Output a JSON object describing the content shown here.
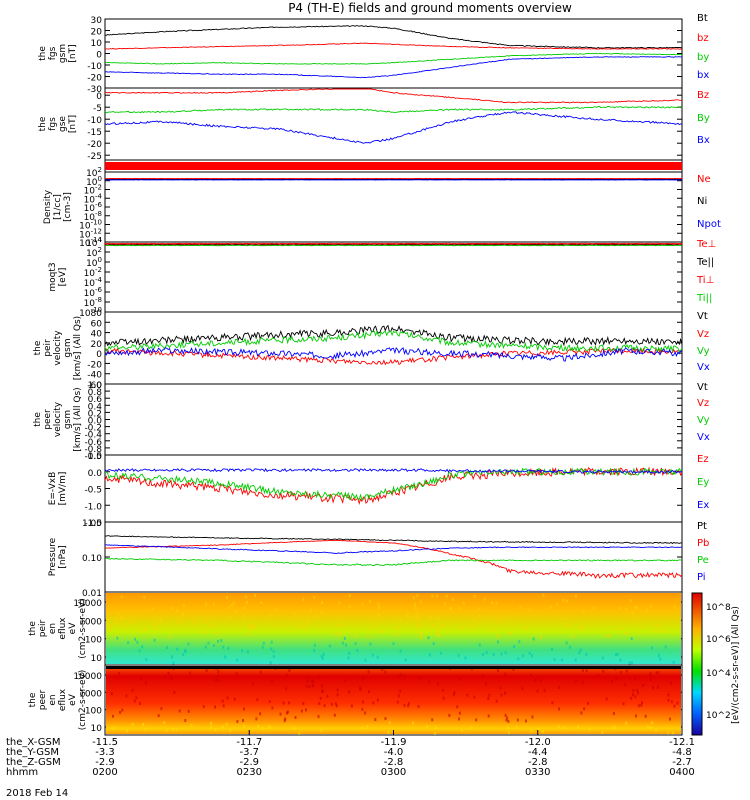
{
  "title": "P4 (TH-E) fields and ground moments overview",
  "date_label": "2018 Feb 14",
  "colorbar_label": "[eV/(cm2-s-sr-eV)] (All Qs)",
  "colorbar_ticks": [
    "10^8",
    "10^6",
    "10^4",
    "10^2"
  ],
  "colors": {
    "black": "#000000",
    "red": "#ff0000",
    "green": "#00cc00",
    "blue": "#0000ff"
  },
  "chart_data": [
    {
      "type": "line",
      "ylabel": [
        "the",
        "fgs",
        "gsm",
        "[nT]"
      ],
      "ticks": [
        30,
        20,
        10,
        0,
        -10,
        -20,
        -30
      ],
      "ylim": [
        -30,
        30
      ],
      "x": [
        0,
        0.1,
        0.2,
        0.3,
        0.45,
        0.5,
        0.6,
        0.7,
        0.85,
        1
      ],
      "series": [
        {
          "name": "Bt",
          "color": "black",
          "values": [
            16,
            19,
            21,
            23,
            24,
            22,
            13,
            7,
            5,
            5
          ],
          "noise": 0.4
        },
        {
          "name": "bz",
          "color": "red",
          "values": [
            4,
            5,
            6,
            7,
            9,
            8,
            6,
            5,
            4,
            4
          ],
          "noise": 0.3
        },
        {
          "name": "by",
          "color": "green",
          "values": [
            -8,
            -9,
            -8,
            -9,
            -9,
            -8,
            -5,
            -2,
            0,
            -1
          ],
          "noise": 0.3
        },
        {
          "name": "bx",
          "color": "blue",
          "values": [
            -16,
            -17,
            -18,
            -18,
            -21,
            -19,
            -12,
            -5,
            -3,
            -3
          ],
          "noise": 0.3
        }
      ]
    },
    {
      "type": "line",
      "ylabel": [
        "the",
        "fgs",
        "gse",
        "[nT]"
      ],
      "ticks": [
        0,
        -5,
        -10,
        -15,
        -20,
        -25
      ],
      "ylim": [
        -27,
        3
      ],
      "x": [
        0,
        0.1,
        0.2,
        0.3,
        0.45,
        0.5,
        0.6,
        0.7,
        0.85,
        1
      ],
      "series": [
        {
          "name": "Bz",
          "color": "red",
          "values": [
            1,
            1,
            1,
            2,
            3,
            1,
            -1,
            -3,
            -3,
            -2
          ],
          "noise": 0.2
        },
        {
          "name": "By",
          "color": "green",
          "values": [
            -7,
            -7,
            -6,
            -6,
            -6,
            -7,
            -6,
            -6,
            -5,
            -5
          ],
          "noise": 0.3
        },
        {
          "name": "Bx",
          "color": "blue",
          "values": [
            -12,
            -11,
            -13,
            -14,
            -20,
            -18,
            -11,
            -7,
            -10,
            -12
          ],
          "noise": 0.4
        }
      ]
    },
    {
      "type": "line",
      "ylabel": [
        "Density",
        "[1/cc]",
        "[cm-3]"
      ],
      "ticks": [
        "10^2",
        "10^0",
        "10^-2",
        "10^-4",
        "10^-6",
        "10^-8",
        "10^-10",
        "10^-12",
        "10^-14"
      ],
      "ylim": [
        -14,
        2
      ],
      "x": [
        0,
        1
      ],
      "series": [
        {
          "name": "Ne",
          "color": "red",
          "values": [
            0.5,
            0.5
          ],
          "noise": 0.02
        },
        {
          "name": "Ni",
          "color": "black",
          "values": [
            0.3,
            0.3
          ],
          "noise": 0.02
        },
        {
          "name": "Npot",
          "color": "blue",
          "values": [
            0.2,
            0.2
          ],
          "noise": 0.02
        }
      ]
    },
    {
      "type": "line",
      "ylabel": [
        "moqt3",
        "[eV]"
      ],
      "ticks": [
        "10^4",
        "10^2",
        "10^0",
        "10^-2",
        "10^-4",
        "10^-6",
        "10^-8",
        "10^-10"
      ],
      "ylim": [
        -10,
        4
      ],
      "x": [
        0,
        1
      ],
      "series": [
        {
          "name": "Te⊥",
          "color": "red",
          "values": [
            3.7,
            3.7
          ],
          "noise": 0.05
        },
        {
          "name": "Te||",
          "color": "black",
          "values": [
            3.5,
            3.5
          ],
          "noise": 0.05
        },
        {
          "name": "Ti⊥",
          "color": "red",
          "values": [
            3.4,
            3.4
          ],
          "noise": 0.05
        },
        {
          "name": "Ti||",
          "color": "green",
          "values": [
            3.3,
            3.3
          ],
          "noise": 0.05
        }
      ]
    },
    {
      "type": "line",
      "ylabel": [
        "the",
        "peir",
        "velocity",
        "gsm",
        "[km/s] (All Qs)"
      ],
      "ticks": [
        80,
        60,
        40,
        20,
        0,
        -20,
        -40,
        -60
      ],
      "ylim": [
        -60,
        80
      ],
      "x": [
        0,
        0.1,
        0.2,
        0.3,
        0.4,
        0.5,
        0.6,
        0.7,
        0.8,
        0.9,
        1
      ],
      "series": [
        {
          "name": "Vt",
          "color": "black",
          "values": [
            20,
            25,
            30,
            35,
            40,
            48,
            30,
            25,
            22,
            25,
            20
          ],
          "noise": 7
        },
        {
          "name": "Vz",
          "color": "red",
          "values": [
            5,
            0,
            -5,
            -10,
            -15,
            -18,
            -8,
            0,
            2,
            5,
            3
          ],
          "noise": 5
        },
        {
          "name": "Vy",
          "color": "green",
          "values": [
            10,
            15,
            20,
            25,
            30,
            40,
            20,
            15,
            10,
            10,
            8
          ],
          "noise": 6
        },
        {
          "name": "Vx",
          "color": "blue",
          "values": [
            0,
            5,
            2,
            0,
            -5,
            5,
            0,
            -5,
            -10,
            5,
            0
          ],
          "noise": 6
        }
      ]
    },
    {
      "type": "line",
      "ylabel": [
        "the",
        "peer",
        "velocity",
        "gsm",
        "[km/s] (All Qs)"
      ],
      "ticks": [
        "1.0",
        "0.8",
        "0.6",
        "0.4",
        "0.2",
        "0.0",
        "-0.2",
        "-0.4",
        "-0.6",
        "-0.8",
        "-1.0"
      ],
      "ylim": [
        -1,
        1
      ],
      "x": [],
      "series": [
        {
          "name": "Vt",
          "color": "black",
          "values": []
        },
        {
          "name": "Vz",
          "color": "red",
          "values": []
        },
        {
          "name": "Vy",
          "color": "green",
          "values": []
        },
        {
          "name": "Vx",
          "color": "blue",
          "values": []
        }
      ]
    },
    {
      "type": "line",
      "ylabel": [
        "E=-VxB",
        "[mV/m]"
      ],
      "ticks": [
        "0.5",
        "0.0",
        "-0.5",
        "-1.0",
        "-1.5"
      ],
      "ylim": [
        -1.5,
        0.5
      ],
      "x": [
        0,
        0.1,
        0.2,
        0.3,
        0.45,
        0.55,
        0.6,
        0.7,
        0.8,
        0.9,
        1
      ],
      "series": [
        {
          "name": "Ez",
          "color": "red",
          "values": [
            -0.2,
            -0.35,
            -0.5,
            -0.7,
            -0.85,
            -0.4,
            -0.15,
            -0.05,
            0,
            0,
            0
          ],
          "noise": 0.12
        },
        {
          "name": "Ey",
          "color": "green",
          "values": [
            -0.1,
            -0.2,
            -0.35,
            -0.6,
            -0.75,
            -0.35,
            -0.1,
            0,
            0,
            0,
            0
          ],
          "noise": 0.1
        },
        {
          "name": "Ex",
          "color": "blue",
          "values": [
            0.05,
            0.05,
            0.05,
            0.05,
            0.05,
            0.05,
            0.03,
            0.02,
            0,
            0,
            0
          ],
          "noise": 0.04
        }
      ]
    },
    {
      "type": "line",
      "log": true,
      "ylabel": [
        "Pressure",
        "[nPa]"
      ],
      "ticks": [
        "1.00",
        "0.10",
        "0.01"
      ],
      "ylim": [
        -2,
        0
      ],
      "x": [
        0,
        0.2,
        0.4,
        0.5,
        0.6,
        0.7,
        0.85,
        1
      ],
      "series": [
        {
          "name": "Pt",
          "color": "black",
          "values": [
            0.4,
            0.35,
            0.32,
            0.3,
            0.28,
            0.27,
            0.26,
            0.25
          ],
          "noise": 0.01
        },
        {
          "name": "Pb",
          "color": "red",
          "values": [
            0.18,
            0.22,
            0.3,
            0.25,
            0.12,
            0.04,
            0.03,
            0.03
          ],
          "noise": 0.005
        },
        {
          "name": "Pe",
          "color": "green",
          "values": [
            0.09,
            0.08,
            0.06,
            0.06,
            0.08,
            0.08,
            0.08,
            0.08
          ],
          "noise": 0.003
        },
        {
          "name": "Pi",
          "color": "blue",
          "values": [
            0.22,
            0.17,
            0.13,
            0.15,
            0.18,
            0.19,
            0.19,
            0.19
          ],
          "noise": 0.005
        }
      ]
    },
    {
      "type": "heatmap",
      "ylabel": [
        "the",
        "peir",
        "en",
        "eflux",
        "eV",
        "(cm2-s-sr-eV)"
      ],
      "ticks": [
        "10000",
        "1000",
        "100",
        "10"
      ]
    },
    {
      "type": "heatmap",
      "ylabel": [
        "the",
        "peer",
        "en",
        "eflux",
        "eV",
        "(cm2-s-sr-eV)"
      ],
      "ticks": [
        "10000",
        "1000",
        "100",
        "10"
      ]
    }
  ],
  "x_axis": {
    "rows": [
      {
        "label": "the_X-GSM",
        "values": [
          "-11.5",
          "-11.7",
          "-11.9",
          "-12.0",
          "-12.1"
        ]
      },
      {
        "label": "the_Y-GSM",
        "values": [
          "-3.3",
          "-3.7",
          "-4.0",
          "-4.4",
          "-4.8"
        ]
      },
      {
        "label": "the_Z-GSM",
        "values": [
          "-2.9",
          "-2.9",
          "-2.8",
          "-2.8",
          "-2.7"
        ]
      },
      {
        "label": "hhmm",
        "values": [
          "0200",
          "0230",
          "0300",
          "0330",
          "0400"
        ]
      }
    ]
  }
}
